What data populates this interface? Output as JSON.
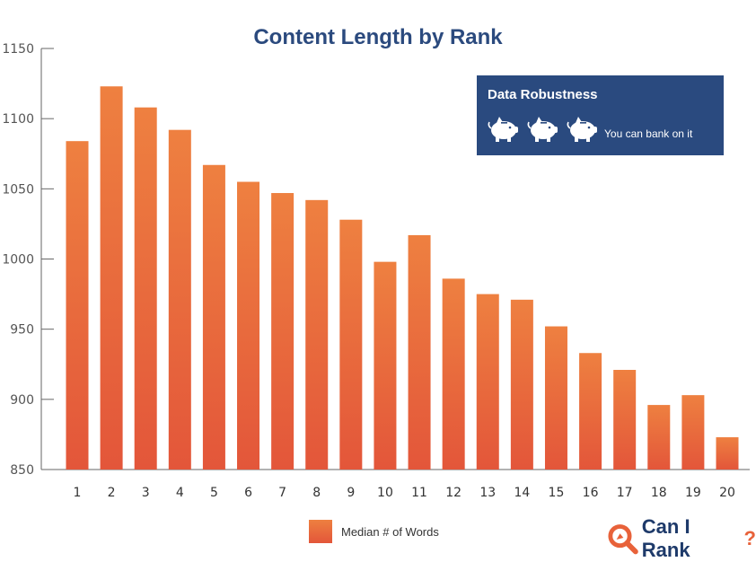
{
  "chart_data": {
    "type": "bar",
    "title": "Content Length by Rank",
    "xlabel": "",
    "ylabel": "",
    "categories": [
      "1",
      "2",
      "3",
      "4",
      "5",
      "6",
      "7",
      "8",
      "9",
      "10",
      "11",
      "12",
      "13",
      "14",
      "15",
      "16",
      "17",
      "18",
      "19",
      "20"
    ],
    "series": [
      {
        "name": "Median # of Words",
        "values": [
          1084,
          1123,
          1108,
          1092,
          1067,
          1055,
          1047,
          1042,
          1028,
          998,
          1017,
          986,
          975,
          971,
          952,
          933,
          921,
          896,
          903,
          873
        ]
      }
    ],
    "ylim": [
      850,
      1150
    ],
    "yticks": [
      "850",
      "900",
      "950",
      "1000",
      "1050",
      "1100",
      "1150"
    ],
    "grid": false,
    "legend_position": "bottom-center",
    "bar_color_top": "#ee8040",
    "bar_color_bottom": "#e3563a"
  },
  "robustness": {
    "title": "Data Robustness",
    "pig_count": 3,
    "label": "You can bank on it",
    "bg_color": "#2a4a7f"
  },
  "brand": {
    "name": "Can I Rank",
    "icon": "magnifier-logo-icon",
    "color": "#e8623a"
  }
}
